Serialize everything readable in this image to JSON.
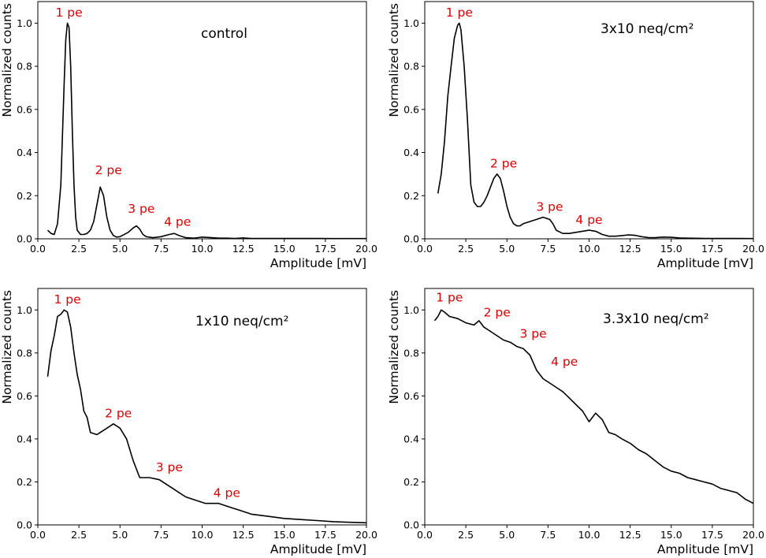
{
  "colors": {
    "line": "#000000",
    "annotation": "#e00000",
    "background": "#ffffff"
  },
  "chart_data": [
    {
      "type": "line",
      "panel_label": "control",
      "xlabel": "Amplitude [mV]",
      "ylabel": "Normalized counts",
      "xlim": [
        0,
        20
      ],
      "ylim": [
        0,
        1.1
      ],
      "xticks": [
        "0.0",
        "2.5",
        "5.0",
        "7.5",
        "10.0",
        "12.5",
        "15.0",
        "17.5",
        "20.0"
      ],
      "yticks": [
        "0.0",
        "0.2",
        "0.4",
        "0.6",
        "0.8",
        "1.0"
      ],
      "grid": false,
      "annotations": [
        {
          "text": "1 pe",
          "x": 1.9,
          "y": 1.03
        },
        {
          "text": "2 pe",
          "x": 4.3,
          "y": 0.3
        },
        {
          "text": "3 pe",
          "x": 6.3,
          "y": 0.12
        },
        {
          "text": "4 pe",
          "x": 8.5,
          "y": 0.06
        }
      ],
      "series": [
        {
          "x": [
            0.6,
            0.8,
            1.0,
            1.2,
            1.4,
            1.6,
            1.7,
            1.8,
            1.9,
            2.0,
            2.1,
            2.2,
            2.3,
            2.4,
            2.6,
            2.8,
            3.0,
            3.2,
            3.4,
            3.6,
            3.8,
            4.0,
            4.2,
            4.4,
            4.6,
            4.8,
            5.0,
            5.5,
            5.8,
            6.0,
            6.2,
            6.4,
            6.6,
            7.0,
            7.5,
            8.0,
            8.3,
            8.6,
            9.0,
            9.5,
            10.0,
            10.5,
            11.0,
            11.5,
            12.0,
            12.5,
            13.0,
            14.0,
            15.0,
            16.0,
            17.0,
            18.0,
            19.0,
            20.0
          ],
          "y": [
            0.04,
            0.025,
            0.02,
            0.07,
            0.25,
            0.72,
            0.92,
            1.0,
            0.98,
            0.8,
            0.5,
            0.25,
            0.1,
            0.04,
            0.02,
            0.02,
            0.025,
            0.04,
            0.08,
            0.16,
            0.24,
            0.2,
            0.1,
            0.04,
            0.015,
            0.008,
            0.01,
            0.03,
            0.05,
            0.06,
            0.045,
            0.02,
            0.01,
            0.005,
            0.01,
            0.02,
            0.025,
            0.015,
            0.005,
            0.003,
            0.008,
            0.006,
            0.003,
            0.003,
            0.002,
            0.004,
            0.002,
            0.002,
            0.002,
            0.002,
            0.002,
            0.001,
            0.001,
            0.001
          ]
        }
      ]
    },
    {
      "type": "line",
      "panel_label": "3x10  neq/cm²",
      "xlabel": "Amplitude [mV]",
      "ylabel": "Normalized counts",
      "xlim": [
        0,
        20
      ],
      "ylim": [
        0,
        1.1
      ],
      "xticks": [
        "0.0",
        "2.5",
        "5.0",
        "7.5",
        "10.0",
        "12.5",
        "15.0",
        "17.5",
        "20.0"
      ],
      "yticks": [
        "0.0",
        "0.2",
        "0.4",
        "0.6",
        "0.8",
        "1.0"
      ],
      "grid": false,
      "annotations": [
        {
          "text": "1 pe",
          "x": 2.1,
          "y": 1.03
        },
        {
          "text": "2 pe",
          "x": 4.8,
          "y": 0.33
        },
        {
          "text": "3 pe",
          "x": 7.6,
          "y": 0.13
        },
        {
          "text": "4 pe",
          "x": 10.0,
          "y": 0.07
        }
      ],
      "series": [
        {
          "x": [
            0.8,
            1.0,
            1.2,
            1.4,
            1.6,
            1.8,
            2.0,
            2.1,
            2.2,
            2.4,
            2.6,
            2.8,
            3.0,
            3.2,
            3.4,
            3.6,
            3.8,
            4.0,
            4.2,
            4.4,
            4.6,
            4.8,
            5.0,
            5.2,
            5.4,
            5.6,
            5.8,
            6.0,
            6.4,
            6.8,
            7.2,
            7.6,
            7.8,
            8.0,
            8.4,
            8.8,
            9.2,
            9.6,
            10.0,
            10.4,
            10.8,
            11.2,
            11.6,
            12.0,
            12.4,
            12.8,
            13.2,
            13.6,
            14.0,
            14.5,
            15.0,
            15.5,
            16.0,
            17.0,
            18.0,
            19.0,
            20.0
          ],
          "y": [
            0.21,
            0.3,
            0.45,
            0.66,
            0.8,
            0.93,
            0.99,
            1.0,
            0.97,
            0.8,
            0.55,
            0.25,
            0.17,
            0.15,
            0.15,
            0.17,
            0.2,
            0.24,
            0.28,
            0.3,
            0.28,
            0.22,
            0.15,
            0.1,
            0.07,
            0.06,
            0.06,
            0.07,
            0.08,
            0.09,
            0.1,
            0.09,
            0.07,
            0.04,
            0.025,
            0.025,
            0.03,
            0.035,
            0.04,
            0.035,
            0.02,
            0.012,
            0.012,
            0.015,
            0.018,
            0.016,
            0.01,
            0.006,
            0.005,
            0.008,
            0.007,
            0.004,
            0.003,
            0.002,
            0.002,
            0.002,
            0.001
          ]
        }
      ]
    },
    {
      "type": "line",
      "panel_label": "1x10  neq/cm²",
      "xlabel": "Amplitude [mV]",
      "ylabel": "Normalized counts",
      "xlim": [
        0,
        20
      ],
      "ylim": [
        0,
        1.1
      ],
      "xticks": [
        "0.0",
        "2.5",
        "5.0",
        "7.5",
        "10.0",
        "12.5",
        "15.0",
        "17.5",
        "20.0"
      ],
      "yticks": [
        "0.0",
        "0.2",
        "0.4",
        "0.6",
        "0.8",
        "1.0"
      ],
      "grid": false,
      "annotations": [
        {
          "text": "1 pe",
          "x": 1.8,
          "y": 1.03
        },
        {
          "text": "2 pe",
          "x": 4.9,
          "y": 0.5
        },
        {
          "text": "3 pe",
          "x": 8.0,
          "y": 0.25
        },
        {
          "text": "4 pe",
          "x": 11.5,
          "y": 0.13
        }
      ],
      "series": [
        {
          "x": [
            0.6,
            0.8,
            1.0,
            1.2,
            1.4,
            1.6,
            1.8,
            2.0,
            2.2,
            2.4,
            2.6,
            2.8,
            3.0,
            3.2,
            3.6,
            3.8,
            4.2,
            4.6,
            5.0,
            5.4,
            5.8,
            6.2,
            6.5,
            6.8,
            7.4,
            7.8,
            8.2,
            8.6,
            9.0,
            9.4,
            9.8,
            10.2,
            10.6,
            11.0,
            11.4,
            11.8,
            12.2,
            12.6,
            13.0,
            14.0,
            15.0,
            16.0,
            17.0,
            18.0,
            19.0,
            20.0
          ],
          "y": [
            0.69,
            0.81,
            0.88,
            0.97,
            0.98,
            1.0,
            0.99,
            0.92,
            0.8,
            0.7,
            0.63,
            0.53,
            0.5,
            0.43,
            0.42,
            0.43,
            0.45,
            0.47,
            0.45,
            0.4,
            0.3,
            0.22,
            0.22,
            0.22,
            0.21,
            0.19,
            0.17,
            0.15,
            0.13,
            0.12,
            0.11,
            0.1,
            0.1,
            0.1,
            0.09,
            0.08,
            0.07,
            0.06,
            0.05,
            0.04,
            0.03,
            0.025,
            0.02,
            0.015,
            0.012,
            0.01
          ]
        }
      ]
    },
    {
      "type": "line",
      "panel_label": "3.3x10  neq/cm²",
      "xlabel": "Amplitude [mV]",
      "ylabel": "Normalized counts",
      "xlim": [
        0,
        20
      ],
      "ylim": [
        0,
        1.1
      ],
      "xticks": [
        "0.0",
        "2.5",
        "5.0",
        "7.5",
        "10.0",
        "12.5",
        "15.0",
        "17.5",
        "20.0"
      ],
      "yticks": [
        "0.0",
        "0.2",
        "0.4",
        "0.6",
        "0.8",
        "1.0"
      ],
      "grid": false,
      "annotations": [
        {
          "text": "1 pe",
          "x": 1.5,
          "y": 1.04
        },
        {
          "text": "2 pe",
          "x": 4.4,
          "y": 0.97
        },
        {
          "text": "3 pe",
          "x": 6.6,
          "y": 0.87
        },
        {
          "text": "4 pe",
          "x": 8.5,
          "y": 0.74
        }
      ],
      "series": [
        {
          "x": [
            0.6,
            0.8,
            1.0,
            1.2,
            1.5,
            2.0,
            2.5,
            3.0,
            3.3,
            3.6,
            4.0,
            4.4,
            4.8,
            5.2,
            5.6,
            6.0,
            6.4,
            6.8,
            7.2,
            7.6,
            8.0,
            8.4,
            8.8,
            9.2,
            9.6,
            10.0,
            10.4,
            10.8,
            11.2,
            11.6,
            12.0,
            12.5,
            13.0,
            13.5,
            14.0,
            14.5,
            15.0,
            15.5,
            16.0,
            16.5,
            17.0,
            17.5,
            18.0,
            18.5,
            19.0,
            19.5,
            20.0
          ],
          "y": [
            0.95,
            0.97,
            1.0,
            0.99,
            0.97,
            0.96,
            0.94,
            0.93,
            0.95,
            0.92,
            0.9,
            0.88,
            0.86,
            0.85,
            0.83,
            0.82,
            0.79,
            0.72,
            0.68,
            0.66,
            0.64,
            0.62,
            0.59,
            0.56,
            0.53,
            0.48,
            0.52,
            0.49,
            0.43,
            0.42,
            0.4,
            0.38,
            0.35,
            0.33,
            0.3,
            0.27,
            0.25,
            0.24,
            0.22,
            0.21,
            0.2,
            0.19,
            0.17,
            0.16,
            0.15,
            0.12,
            0.1
          ]
        }
      ]
    }
  ]
}
